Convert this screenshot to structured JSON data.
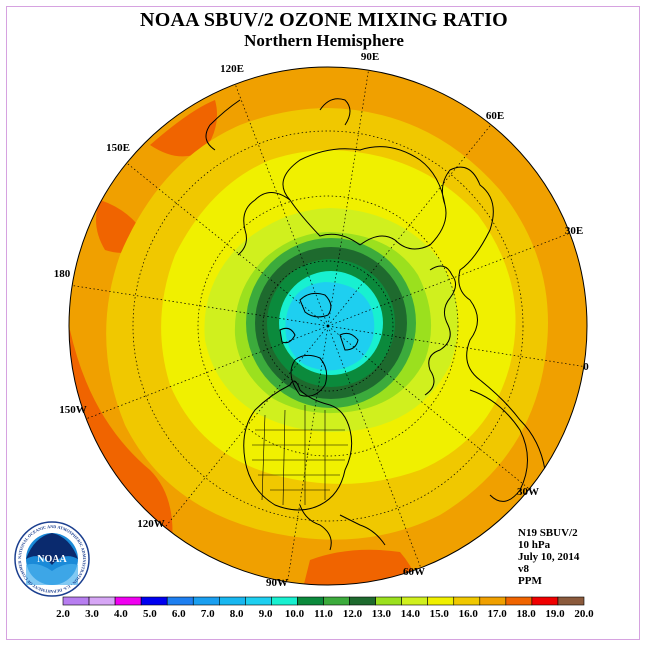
{
  "title": "NOAA SBUV/2 OZONE MIXING RATIO",
  "subtitle": "Northern Hemisphere",
  "info": {
    "satellite": "N19 SBUV/2",
    "level": "10 hPa",
    "date": "July 10, 2014",
    "version": "v8",
    "units": "PPM"
  },
  "longitude_labels": [
    "90E",
    "60E",
    "30E",
    "0",
    "30W",
    "60W",
    "90W",
    "120W",
    "150W",
    "180",
    "150E",
    "120E"
  ],
  "colorbar": {
    "labels": [
      "2.0",
      "3.0",
      "4.0",
      "5.0",
      "6.0",
      "7.0",
      "8.0",
      "9.0",
      "10.0",
      "11.0",
      "12.0",
      "13.0",
      "14.0",
      "15.0",
      "16.0",
      "17.0",
      "18.0",
      "19.0",
      "20.0"
    ],
    "colors": [
      "#b77ef0",
      "#d6a6f5",
      "#f000f0",
      "#0000f0",
      "#1e7ff0",
      "#1a9ff0",
      "#18b7f0",
      "#1ecff0",
      "#18f0d0",
      "#0b8a3c",
      "#3cab3c",
      "#1e6a2e",
      "#9be01e",
      "#d0f01e",
      "#f0f000",
      "#f0c800",
      "#f0a000",
      "#f06400",
      "#f00000",
      "#8b5a3c"
    ]
  },
  "logo": {
    "text": "NOAA",
    "ring_text": "NATIONAL OCEANIC AND ATMOSPHERIC ADMINISTRATION · U.S. DEPARTMENT OF COMMERCE"
  }
}
